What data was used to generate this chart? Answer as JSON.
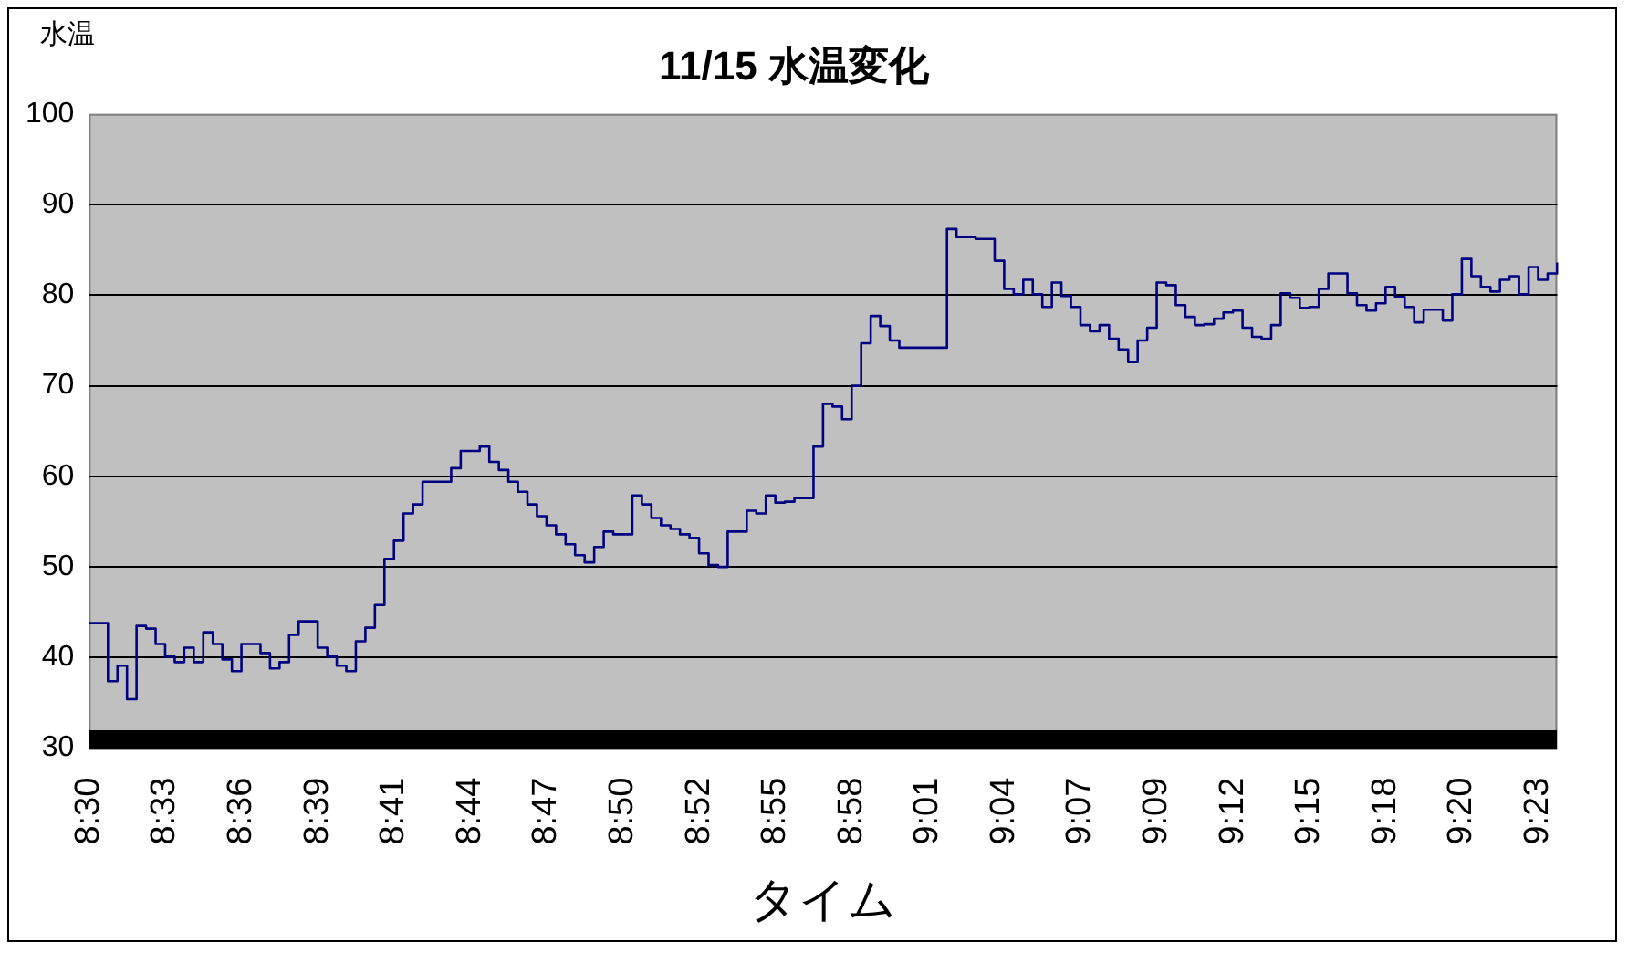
{
  "chart_data": {
    "type": "step",
    "title": "11/15 水温変化",
    "xlabel": "タイム",
    "ylabel": "水温",
    "categories": [
      "8:30",
      null,
      null,
      null,
      null,
      null,
      null,
      null,
      "8:33",
      null,
      null,
      null,
      null,
      null,
      null,
      null,
      "8:36",
      null,
      null,
      null,
      null,
      null,
      null,
      null,
      "8:39",
      null,
      null,
      null,
      null,
      null,
      null,
      null,
      "8:41",
      null,
      null,
      null,
      null,
      null,
      null,
      null,
      "8:44",
      null,
      null,
      null,
      null,
      null,
      null,
      null,
      "8:47",
      null,
      null,
      null,
      null,
      null,
      null,
      null,
      "8:50",
      null,
      null,
      null,
      null,
      null,
      null,
      null,
      "8:52",
      null,
      null,
      null,
      null,
      null,
      null,
      null,
      "8:55",
      null,
      null,
      null,
      null,
      null,
      null,
      null,
      "8:58",
      null,
      null,
      null,
      null,
      null,
      null,
      null,
      "9:01",
      null,
      null,
      null,
      null,
      null,
      null,
      null,
      "9:04",
      null,
      null,
      null,
      null,
      null,
      null,
      null,
      "9:07",
      null,
      null,
      null,
      null,
      null,
      null,
      null,
      "9:09",
      null,
      null,
      null,
      null,
      null,
      null,
      null,
      "9:12",
      null,
      null,
      null,
      null,
      null,
      null,
      null,
      "9:15",
      null,
      null,
      null,
      null,
      null,
      null,
      null,
      "9:18",
      null,
      null,
      null,
      null,
      null,
      null,
      null,
      "9:20",
      null,
      null,
      null,
      null,
      null,
      null,
      null,
      "9:23",
      null,
      null
    ],
    "series": [
      {
        "color": "#000080",
        "values": [
          43.8,
          43.8,
          37.4,
          39.1,
          35.4,
          43.5,
          43.2,
          41.5,
          40.1,
          39.5,
          41.1,
          39.5,
          42.8,
          41.5,
          39.8,
          38.5,
          41.5,
          41.5,
          40.5,
          38.8,
          39.5,
          42.5,
          44.0,
          44.0,
          41.1,
          40.1,
          39.1,
          38.5,
          41.8,
          43.3,
          45.8,
          50.9,
          52.9,
          55.9,
          56.9,
          59.4,
          59.4,
          59.4,
          60.9,
          62.8,
          62.8,
          63.3,
          61.6,
          60.7,
          59.4,
          58.3,
          56.9,
          55.6,
          54.6,
          53.6,
          52.5,
          51.3,
          50.5,
          52.2,
          53.9,
          53.6,
          53.6,
          57.9,
          56.9,
          55.4,
          54.6,
          54.2,
          53.6,
          53.2,
          51.5,
          50.2,
          50.0,
          53.9,
          53.9,
          56.2,
          55.9,
          57.9,
          57.1,
          57.2,
          57.6,
          57.6,
          63.3,
          68.0,
          67.7,
          66.3,
          70.0,
          74.7,
          77.7,
          76.6,
          75.0,
          74.2,
          74.2,
          74.2,
          74.2,
          74.2,
          87.3,
          86.4,
          86.4,
          86.2,
          86.2,
          83.8,
          80.7,
          80.1,
          81.7,
          80.1,
          78.7,
          81.4,
          79.9,
          78.7,
          76.7,
          76.0,
          76.7,
          75.2,
          74.0,
          72.6,
          75.0,
          76.4,
          81.4,
          81.1,
          78.9,
          77.6,
          76.7,
          76.8,
          77.4,
          78.1,
          78.3,
          76.4,
          75.4,
          75.2,
          76.7,
          80.2,
          79.7,
          78.6,
          78.7,
          80.7,
          82.4,
          82.4,
          80.2,
          78.9,
          78.3,
          79.1,
          80.9,
          79.8,
          78.7,
          77.0,
          78.4,
          78.4,
          77.2,
          80.1,
          84.0,
          82.1,
          80.9,
          80.4,
          81.7,
          82.1,
          80.1,
          83.1,
          81.7,
          82.4,
          83.6
        ]
      }
    ],
    "ylim": [
      30,
      100
    ],
    "yticks": [
      30,
      40,
      50,
      60,
      70,
      80,
      90,
      100
    ],
    "grid": "y",
    "marker": "none",
    "line_style": "solid"
  }
}
